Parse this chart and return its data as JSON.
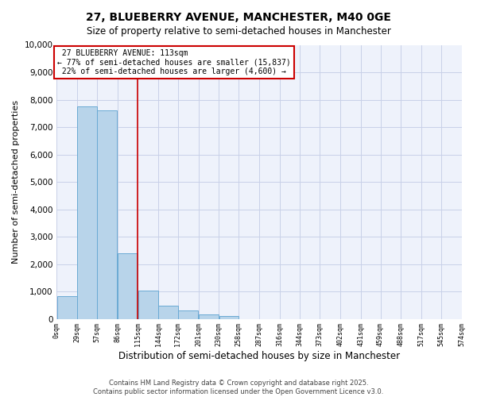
{
  "title": "27, BLUEBERRY AVENUE, MANCHESTER, M40 0GE",
  "subtitle": "Size of property relative to semi-detached houses in Manchester",
  "xlabel": "Distribution of semi-detached houses by size in Manchester",
  "ylabel": "Number of semi-detached properties",
  "property_label": "27 BLUEBERRY AVENUE: 113sqm",
  "pct_smaller": 77,
  "pct_larger": 22,
  "count_smaller": 15837,
  "count_larger": 4600,
  "bar_color": "#b8d4ea",
  "bar_edge_color": "#6aaad4",
  "vline_color": "#cc0000",
  "annotation_box_edge": "#cc0000",
  "background_color": "#eef2fb",
  "grid_color": "#c8d0e8",
  "bin_edges": [
    0,
    29,
    57,
    86,
    115,
    144,
    172,
    201,
    230,
    258,
    287,
    316,
    344,
    373,
    402,
    431,
    459,
    488,
    517,
    545,
    574
  ],
  "bar_heights": [
    820,
    7750,
    7600,
    2380,
    1020,
    480,
    300,
    155,
    100,
    0,
    0,
    0,
    0,
    0,
    0,
    0,
    0,
    0,
    0,
    0
  ],
  "vline_x": 115,
  "ylim": [
    0,
    10000
  ],
  "yticks": [
    0,
    1000,
    2000,
    3000,
    4000,
    5000,
    6000,
    7000,
    8000,
    9000,
    10000
  ],
  "tick_labels": [
    "0sqm",
    "29sqm",
    "57sqm",
    "86sqm",
    "115sqm",
    "144sqm",
    "172sqm",
    "201sqm",
    "230sqm",
    "258sqm",
    "287sqm",
    "316sqm",
    "344sqm",
    "373sqm",
    "402sqm",
    "431sqm",
    "459sqm",
    "488sqm",
    "517sqm",
    "545sqm",
    "574sqm"
  ],
  "footer_line1": "Contains HM Land Registry data © Crown copyright and database right 2025.",
  "footer_line2": "Contains public sector information licensed under the Open Government Licence v3.0."
}
